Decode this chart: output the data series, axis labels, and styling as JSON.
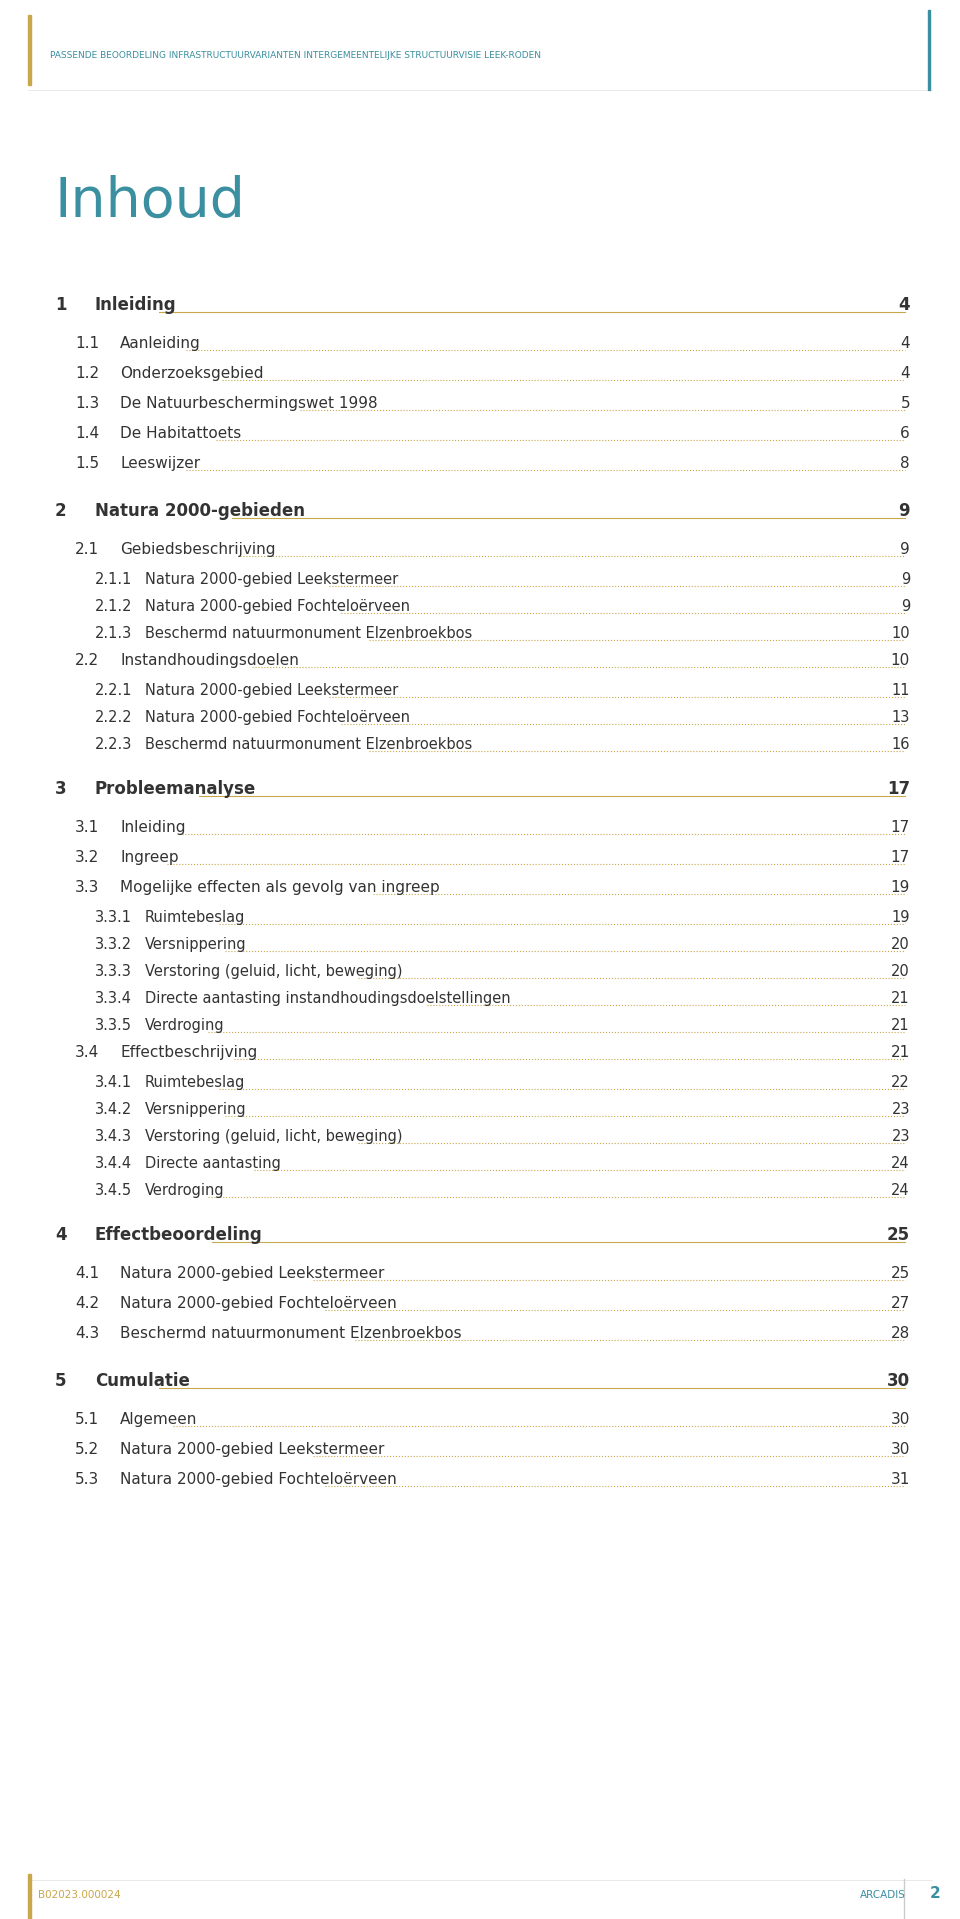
{
  "header_text": "PASSENDE BEOORDELING INFRASTRUCTUURVARIANTEN INTERGEMEENTELIJKE STRUCTUURVISIE LEEK-RODEN",
  "header_color": "#3a8fa0",
  "header_left_bar_color": "#c8a84b",
  "title": "Inhoud",
  "title_color": "#3a8fa0",
  "footer_left": "B02023.000024",
  "footer_right": "ARCADIS",
  "footer_page": "2",
  "footer_color": "#c8a84b",
  "footer_teal": "#3a8fa0",
  "bg_color": "#ffffff",
  "line_color": "#c8a84b",
  "text_color": "#333333",
  "entries": [
    {
      "level": 1,
      "num": "1",
      "title": "Inleiding",
      "page": "4",
      "bold": true
    },
    {
      "level": 2,
      "num": "1.1",
      "title": "Aanleiding",
      "page": "4",
      "bold": false
    },
    {
      "level": 2,
      "num": "1.2",
      "title": "Onderzoeksgebied",
      "page": "4",
      "bold": false
    },
    {
      "level": 2,
      "num": "1.3",
      "title": "De Natuurbeschermingswet 1998",
      "page": "5",
      "bold": false
    },
    {
      "level": 2,
      "num": "1.4",
      "title": "De Habitattoets",
      "page": "6",
      "bold": false
    },
    {
      "level": 2,
      "num": "1.5",
      "title": "Leeswijzer",
      "page": "8",
      "bold": false
    },
    {
      "level": 1,
      "num": "2",
      "title": "Natura 2000-gebieden",
      "page": "9",
      "bold": true
    },
    {
      "level": 2,
      "num": "2.1",
      "title": "Gebiedsbeschrijving",
      "page": "9",
      "bold": false
    },
    {
      "level": 3,
      "num": "2.1.1",
      "title": "Natura 2000-gebied Leekstermeer",
      "page": "9",
      "bold": false
    },
    {
      "level": 3,
      "num": "2.1.2",
      "title": "Natura 2000-gebied Fochteloërveen",
      "page": "9",
      "bold": false
    },
    {
      "level": 3,
      "num": "2.1.3",
      "title": "Beschermd natuurmonument Elzenbroekbos",
      "page": "10",
      "bold": false
    },
    {
      "level": 2,
      "num": "2.2",
      "title": "Instandhoudingsdoelen",
      "page": "10",
      "bold": false
    },
    {
      "level": 3,
      "num": "2.2.1",
      "title": "Natura 2000-gebied Leekstermeer",
      "page": "11",
      "bold": false
    },
    {
      "level": 3,
      "num": "2.2.2",
      "title": "Natura 2000-gebied Fochteloërveen",
      "page": "13",
      "bold": false
    },
    {
      "level": 3,
      "num": "2.2.3",
      "title": "Beschermd natuurmonument Elzenbroekbos",
      "page": "16",
      "bold": false
    },
    {
      "level": 1,
      "num": "3",
      "title": "Probleemanalyse",
      "page": "17",
      "bold": true
    },
    {
      "level": 2,
      "num": "3.1",
      "title": "Inleiding",
      "page": "17",
      "bold": false
    },
    {
      "level": 2,
      "num": "3.2",
      "title": "Ingreep",
      "page": "17",
      "bold": false
    },
    {
      "level": 2,
      "num": "3.3",
      "title": "Mogelijke effecten als gevolg van ingreep",
      "page": "19",
      "bold": false
    },
    {
      "level": 3,
      "num": "3.3.1",
      "title": "Ruimtebeslag",
      "page": "19",
      "bold": false
    },
    {
      "level": 3,
      "num": "3.3.2",
      "title": "Versnippering",
      "page": "20",
      "bold": false
    },
    {
      "level": 3,
      "num": "3.3.3",
      "title": "Verstoring (geluid, licht, beweging)",
      "page": "20",
      "bold": false
    },
    {
      "level": 3,
      "num": "3.3.4",
      "title": "Directe aantasting instandhoudingsdoelstellingen",
      "page": "21",
      "bold": false
    },
    {
      "level": 3,
      "num": "3.3.5",
      "title": "Verdroging",
      "page": "21",
      "bold": false
    },
    {
      "level": 2,
      "num": "3.4",
      "title": "Effectbeschrijving",
      "page": "21",
      "bold": false
    },
    {
      "level": 3,
      "num": "3.4.1",
      "title": "Ruimtebeslag",
      "page": "22",
      "bold": false
    },
    {
      "level": 3,
      "num": "3.4.2",
      "title": "Versnippering",
      "page": "23",
      "bold": false
    },
    {
      "level": 3,
      "num": "3.4.3",
      "title": "Verstoring (geluid, licht, beweging)",
      "page": "23",
      "bold": false
    },
    {
      "level": 3,
      "num": "3.4.4",
      "title": "Directe aantasting",
      "page": "24",
      "bold": false
    },
    {
      "level": 3,
      "num": "3.4.5",
      "title": "Verdroging",
      "page": "24",
      "bold": false
    },
    {
      "level": 1,
      "num": "4",
      "title": "Effectbeoordeling",
      "page": "25",
      "bold": true
    },
    {
      "level": 2,
      "num": "4.1",
      "title": "Natura 2000-gebied Leekstermeer",
      "page": "25",
      "bold": false
    },
    {
      "level": 2,
      "num": "4.2",
      "title": "Natura 2000-gebied Fochteloërveen",
      "page": "27",
      "bold": false
    },
    {
      "level": 2,
      "num": "4.3",
      "title": "Beschermd natuurmonument Elzenbroekbos",
      "page": "28",
      "bold": false
    },
    {
      "level": 1,
      "num": "5",
      "title": "Cumulatie",
      "page": "30",
      "bold": true
    },
    {
      "level": 2,
      "num": "5.1",
      "title": "Algemeen",
      "page": "30",
      "bold": false
    },
    {
      "level": 2,
      "num": "5.2",
      "title": "Natura 2000-gebied Leekstermeer",
      "page": "30",
      "bold": false
    },
    {
      "level": 2,
      "num": "5.3",
      "title": "Natura 2000-gebied Fochteloërveen",
      "page": "31",
      "bold": false
    }
  ]
}
